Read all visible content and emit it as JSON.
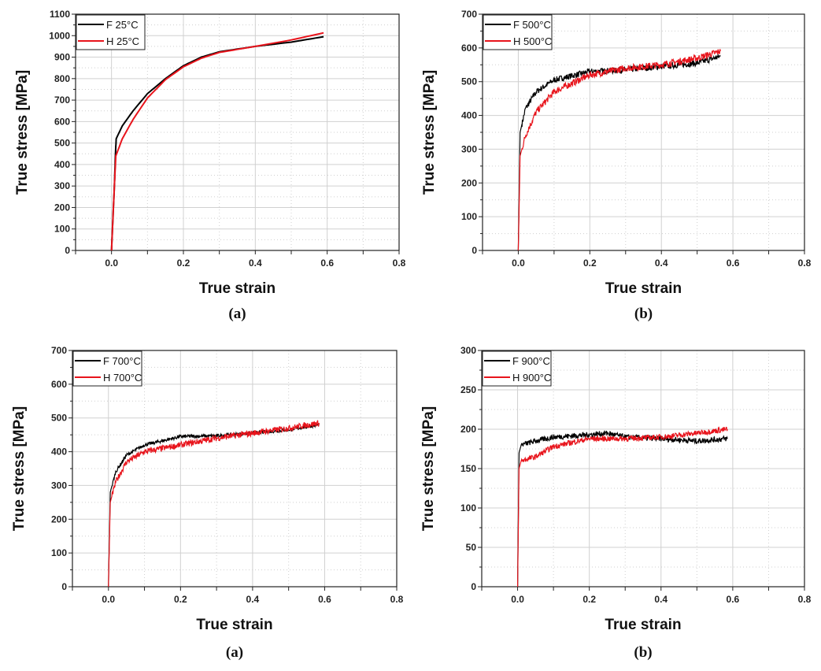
{
  "chart_data": [
    {
      "type": "line",
      "panel_label": "(a)",
      "xlabel": "True strain",
      "ylabel": "True stress [MPa]",
      "xlim": [
        -0.1,
        0.8
      ],
      "ylim": [
        0,
        1100
      ],
      "xticks": [
        0.0,
        0.2,
        0.4,
        0.6,
        0.8
      ],
      "xtick_labels": [
        "0.0",
        "0.2",
        "0.4",
        "0.6",
        "0.8"
      ],
      "yticks": [
        0,
        100,
        200,
        300,
        400,
        500,
        600,
        700,
        800,
        900,
        1000,
        1100
      ],
      "ytick_labels": [
        "0",
        "100",
        "200",
        "300",
        "400",
        "500",
        "600",
        "700",
        "800",
        "900",
        "1000",
        "1100"
      ],
      "grid": true,
      "legend_placement": "top-left",
      "series": [
        {
          "name": "F 25°C",
          "color": "#000000",
          "noise": 0,
          "x": [
            0,
            0.008,
            0.011,
            0.013,
            0.03,
            0.06,
            0.1,
            0.15,
            0.2,
            0.25,
            0.3,
            0.4,
            0.5,
            0.59
          ],
          "y": [
            0,
            300,
            450,
            520,
            580,
            650,
            730,
            800,
            860,
            900,
            925,
            950,
            970,
            995
          ]
        },
        {
          "name": "H 25°C",
          "color": "#e8141c",
          "noise": 0,
          "x": [
            0,
            0.008,
            0.012,
            0.03,
            0.06,
            0.1,
            0.15,
            0.2,
            0.25,
            0.3,
            0.4,
            0.5,
            0.59
          ],
          "y": [
            0,
            300,
            440,
            520,
            610,
            710,
            795,
            855,
            895,
            922,
            950,
            980,
            1013
          ]
        }
      ]
    },
    {
      "type": "line",
      "panel_label": "(b)",
      "xlabel": "True strain",
      "ylabel": "True stress [MPa]",
      "xlim": [
        -0.1,
        0.8
      ],
      "ylim": [
        0,
        700
      ],
      "xticks": [
        0.0,
        0.2,
        0.4,
        0.6,
        0.8
      ],
      "xtick_labels": [
        "0.0",
        "0.2",
        "0.4",
        "0.6",
        "0.8"
      ],
      "yticks": [
        0,
        100,
        200,
        300,
        400,
        500,
        600,
        700
      ],
      "ytick_labels": [
        "0",
        "100",
        "200",
        "300",
        "400",
        "500",
        "600",
        "700"
      ],
      "grid": true,
      "legend_placement": "top-left",
      "series": [
        {
          "name": "F 500°C",
          "color": "#000000",
          "noise": 9,
          "x": [
            0,
            0.005,
            0.02,
            0.05,
            0.1,
            0.2,
            0.3,
            0.4,
            0.5,
            0.565
          ],
          "y": [
            0,
            350,
            420,
            470,
            505,
            530,
            535,
            545,
            555,
            575
          ]
        },
        {
          "name": "H 500°C",
          "color": "#e8141c",
          "noise": 10,
          "x": [
            0,
            0.005,
            0.02,
            0.05,
            0.1,
            0.2,
            0.3,
            0.4,
            0.5,
            0.565
          ],
          "y": [
            0,
            280,
            340,
            410,
            470,
            520,
            540,
            550,
            570,
            590
          ]
        }
      ]
    },
    {
      "type": "line",
      "panel_label": "(a)",
      "xlabel": "True strain",
      "ylabel": "True stress [MPa]",
      "xlim": [
        -0.1,
        0.8
      ],
      "ylim": [
        0,
        700
      ],
      "xticks": [
        0.0,
        0.2,
        0.4,
        0.6,
        0.8
      ],
      "xtick_labels": [
        "0.0",
        "0.2",
        "0.4",
        "0.6",
        "0.8"
      ],
      "yticks": [
        0,
        100,
        200,
        300,
        400,
        500,
        600,
        700
      ],
      "ytick_labels": [
        "0",
        "100",
        "200",
        "300",
        "400",
        "500",
        "600",
        "700"
      ],
      "grid": true,
      "legend_placement": "top-left",
      "series": [
        {
          "name": "F 700°C",
          "color": "#000000",
          "noise": 5,
          "x": [
            0,
            0.005,
            0.02,
            0.05,
            0.1,
            0.2,
            0.3,
            0.4,
            0.5,
            0.585
          ],
          "y": [
            0,
            280,
            340,
            390,
            420,
            445,
            447,
            455,
            465,
            480
          ]
        },
        {
          "name": "H 700°C",
          "color": "#e8141c",
          "noise": 9,
          "x": [
            0,
            0.005,
            0.02,
            0.05,
            0.1,
            0.2,
            0.3,
            0.4,
            0.5,
            0.585
          ],
          "y": [
            0,
            250,
            310,
            370,
            400,
            420,
            440,
            455,
            470,
            485
          ]
        }
      ]
    },
    {
      "type": "line",
      "panel_label": "(b)",
      "xlabel": "True strain",
      "ylabel": "True stress [MPa]",
      "xlim": [
        -0.1,
        0.8
      ],
      "ylim": [
        0,
        300
      ],
      "xticks": [
        0.0,
        0.2,
        0.4,
        0.6,
        0.8
      ],
      "xtick_labels": [
        "0.0",
        "0.2",
        "0.4",
        "0.6",
        "0.8"
      ],
      "yticks": [
        0,
        50,
        100,
        150,
        200,
        250,
        300
      ],
      "ytick_labels": [
        "0",
        "50",
        "100",
        "150",
        "200",
        "250",
        "300"
      ],
      "grid": true,
      "legend_placement": "top-left",
      "series": [
        {
          "name": "F 900°C",
          "color": "#000000",
          "noise": 3.5,
          "x": [
            0,
            0.004,
            0.01,
            0.05,
            0.1,
            0.2,
            0.25,
            0.3,
            0.4,
            0.5,
            0.585
          ],
          "y": [
            0,
            170,
            180,
            185,
            190,
            193,
            195,
            190,
            188,
            185,
            188
          ]
        },
        {
          "name": "H 900°C",
          "color": "#e8141c",
          "noise": 3.5,
          "x": [
            0,
            0.004,
            0.01,
            0.05,
            0.1,
            0.2,
            0.3,
            0.4,
            0.5,
            0.585
          ],
          "y": [
            0,
            150,
            160,
            165,
            178,
            188,
            188,
            190,
            195,
            200
          ]
        }
      ]
    }
  ]
}
